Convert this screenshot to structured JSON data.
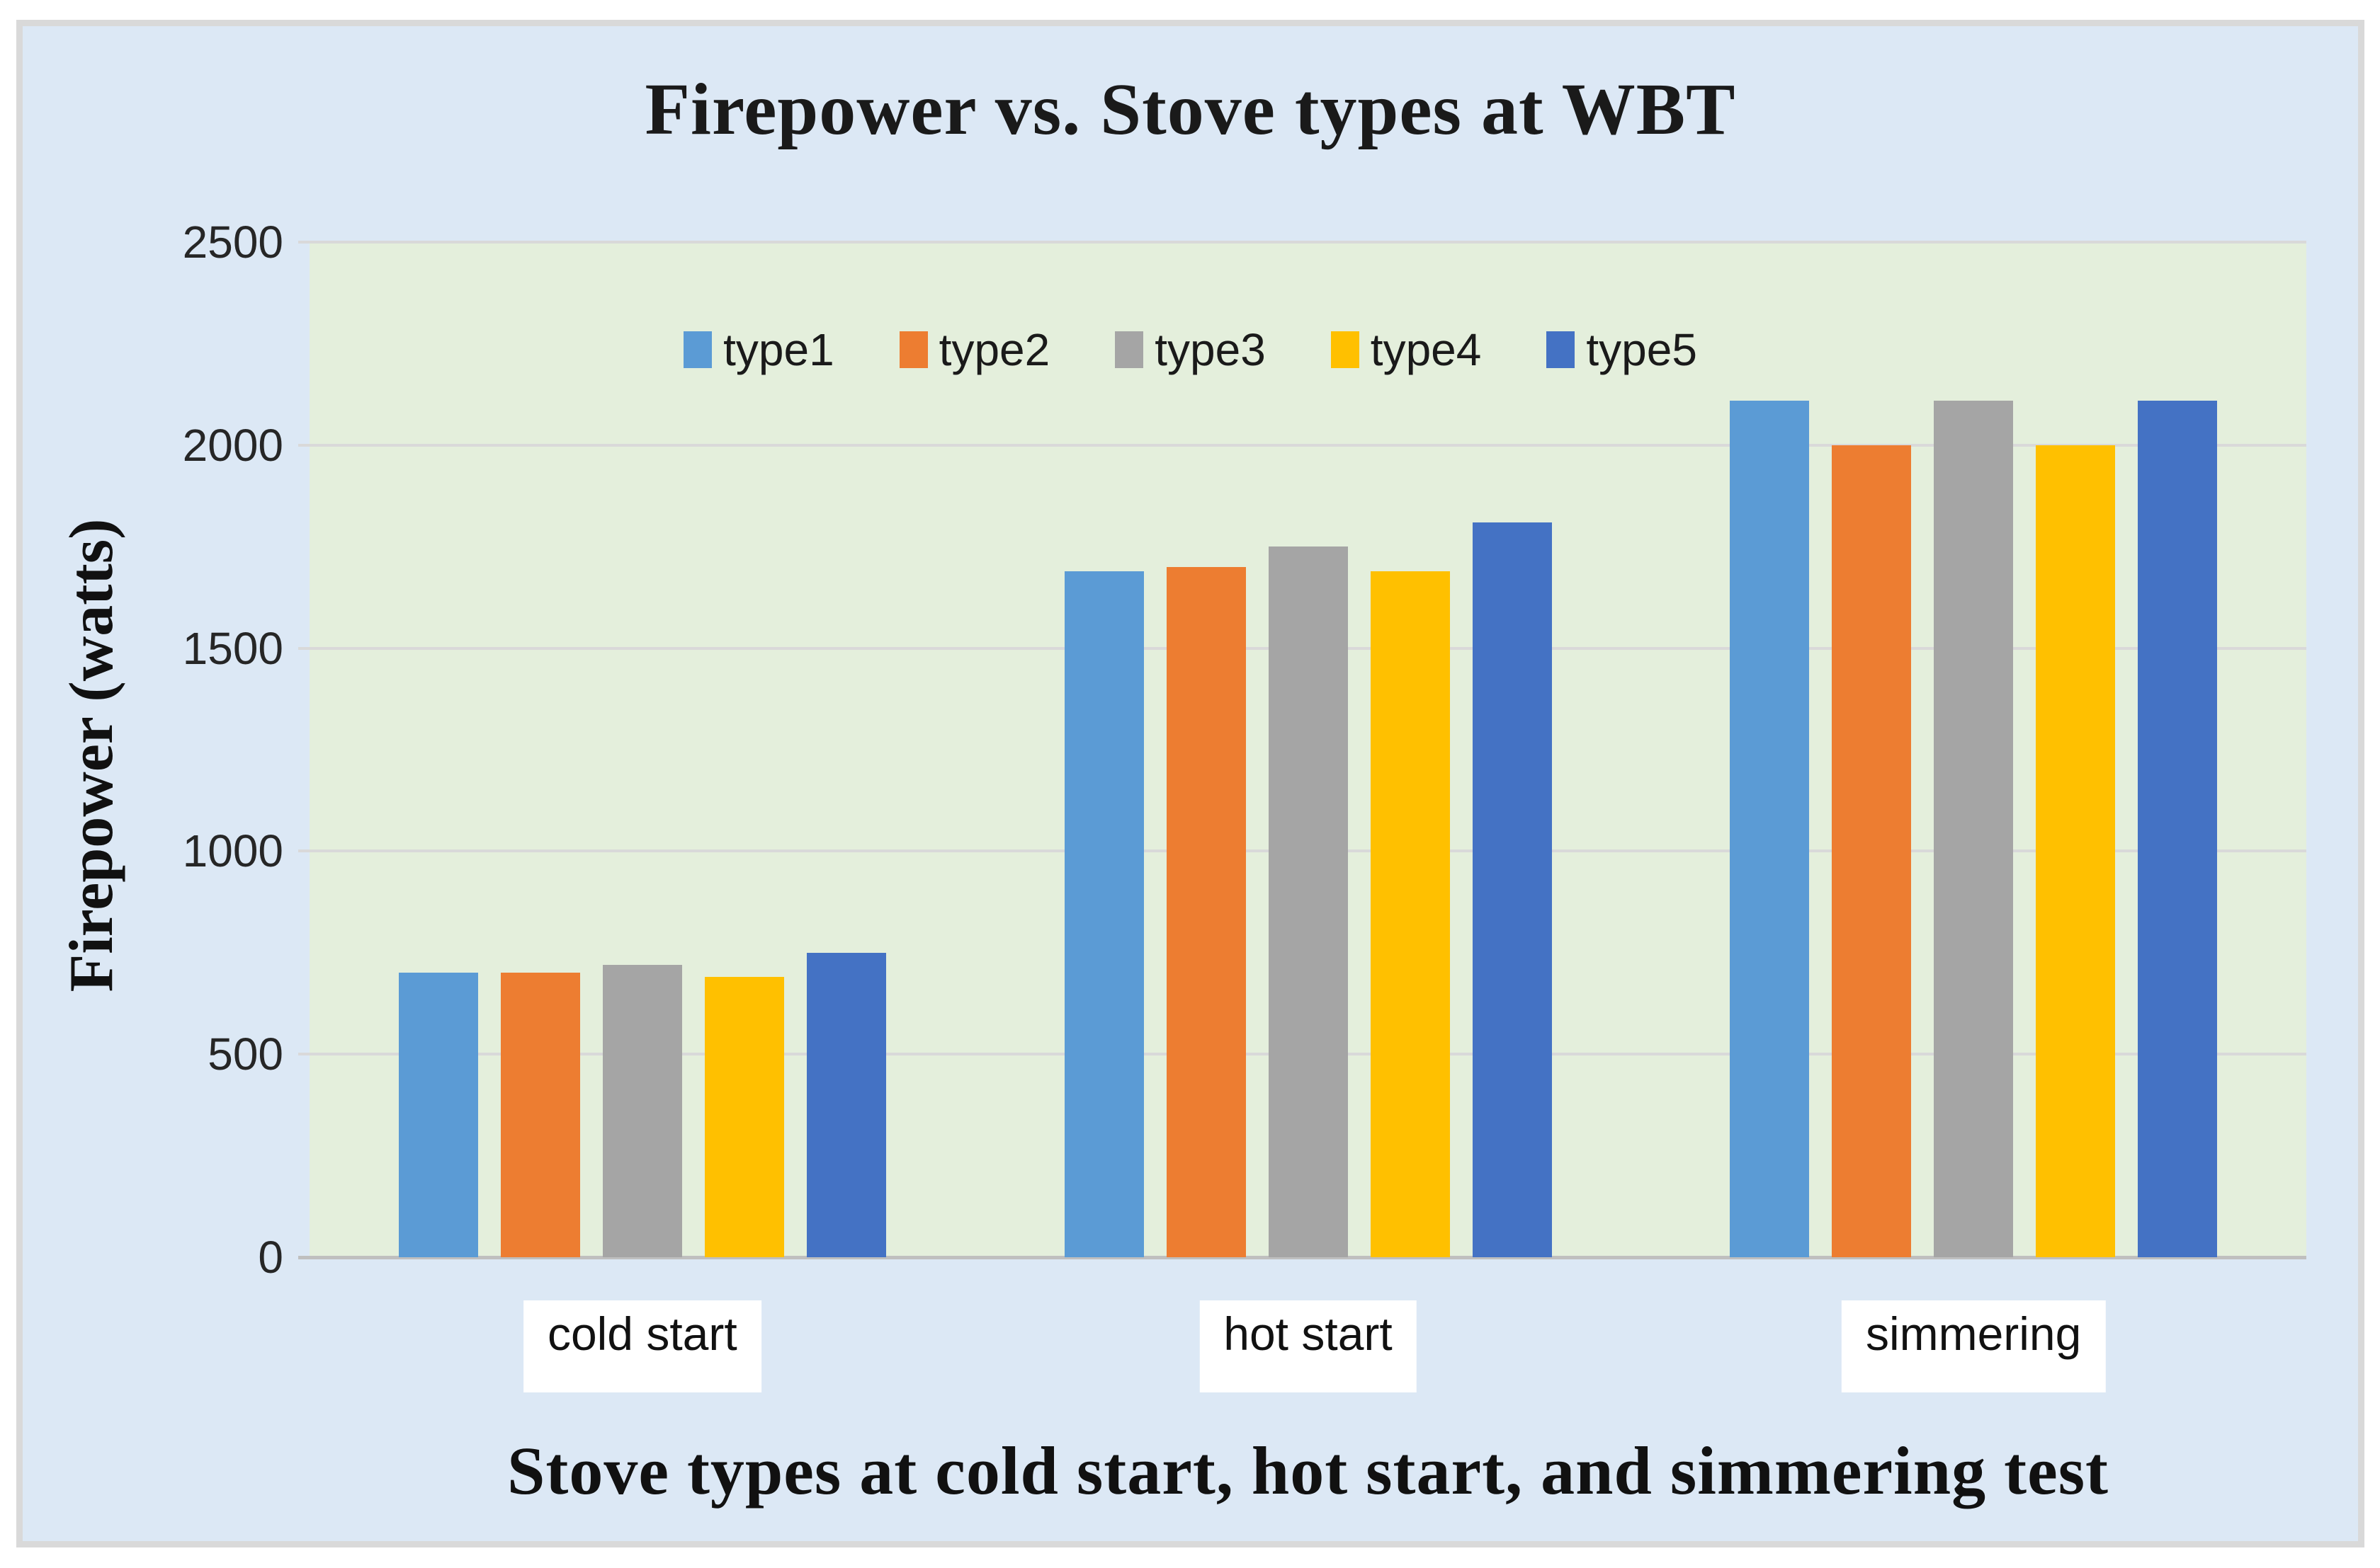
{
  "chart_data": {
    "type": "bar",
    "title": "Firepower vs. Stove types at WBT",
    "ylabel": "Firepower (watts)",
    "xlabel": "Stove types at cold start, hot start, and simmering test",
    "categories": [
      "cold start",
      "hot start",
      "simmering"
    ],
    "series": [
      {
        "name": "type1",
        "color": "#5B9BD5",
        "values": [
          700,
          1690,
          2110
        ]
      },
      {
        "name": "type2",
        "color": "#ED7D31",
        "values": [
          700,
          1700,
          2000
        ]
      },
      {
        "name": "type3",
        "color": "#A5A5A5",
        "values": [
          720,
          1750,
          2110
        ]
      },
      {
        "name": "type4",
        "color": "#FFC000",
        "values": [
          690,
          1690,
          2000
        ]
      },
      {
        "name": "type5",
        "color": "#4472C4",
        "values": [
          750,
          1810,
          2110
        ]
      }
    ],
    "ylim": [
      0,
      2500
    ],
    "yticks": [
      0,
      500,
      1000,
      1500,
      2000,
      2500
    ],
    "grid": true,
    "legend_position": "top-center-inside-plot"
  },
  "colors": {
    "chart_background": "#DCE8F5",
    "plot_background": "#E4EFDC",
    "frame_border": "#D9D9D9",
    "gridline": "#D9D9D9",
    "axis_baseline": "#BFBFBF",
    "category_label_background": "#FFFFFF",
    "text": "#1A1A1A"
  }
}
